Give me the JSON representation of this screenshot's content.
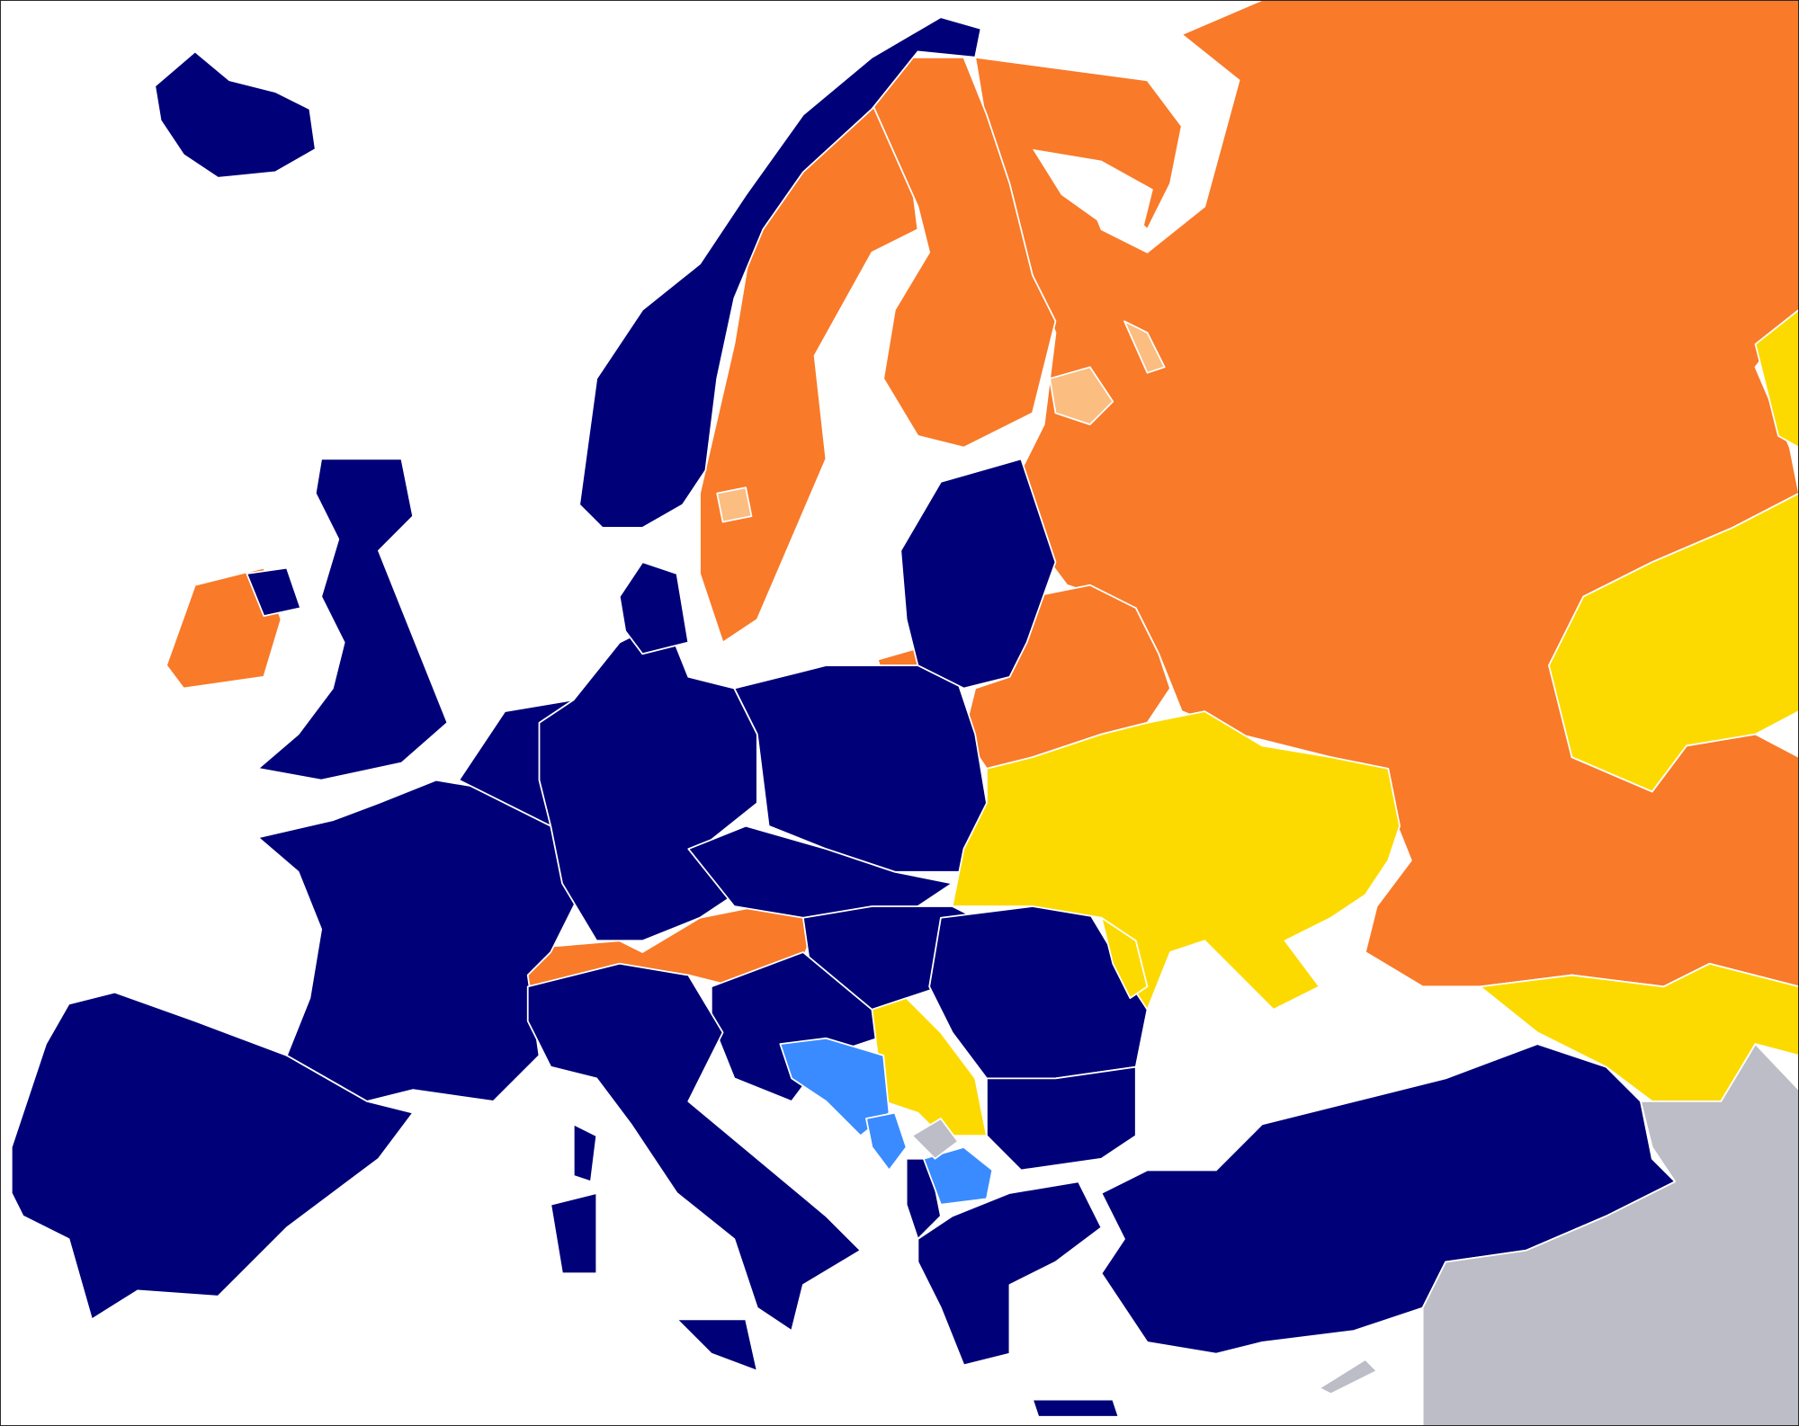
{
  "map": {
    "colors": {
      "sea": "#ffffff",
      "navy": "#000078",
      "orange": "#f97a29",
      "yellow": "#fcda00",
      "light_blue": "#3a8bff",
      "gray": "#bdbdc7",
      "light_orange": "#fbbd80",
      "border": "#ffffff"
    }
  }
}
